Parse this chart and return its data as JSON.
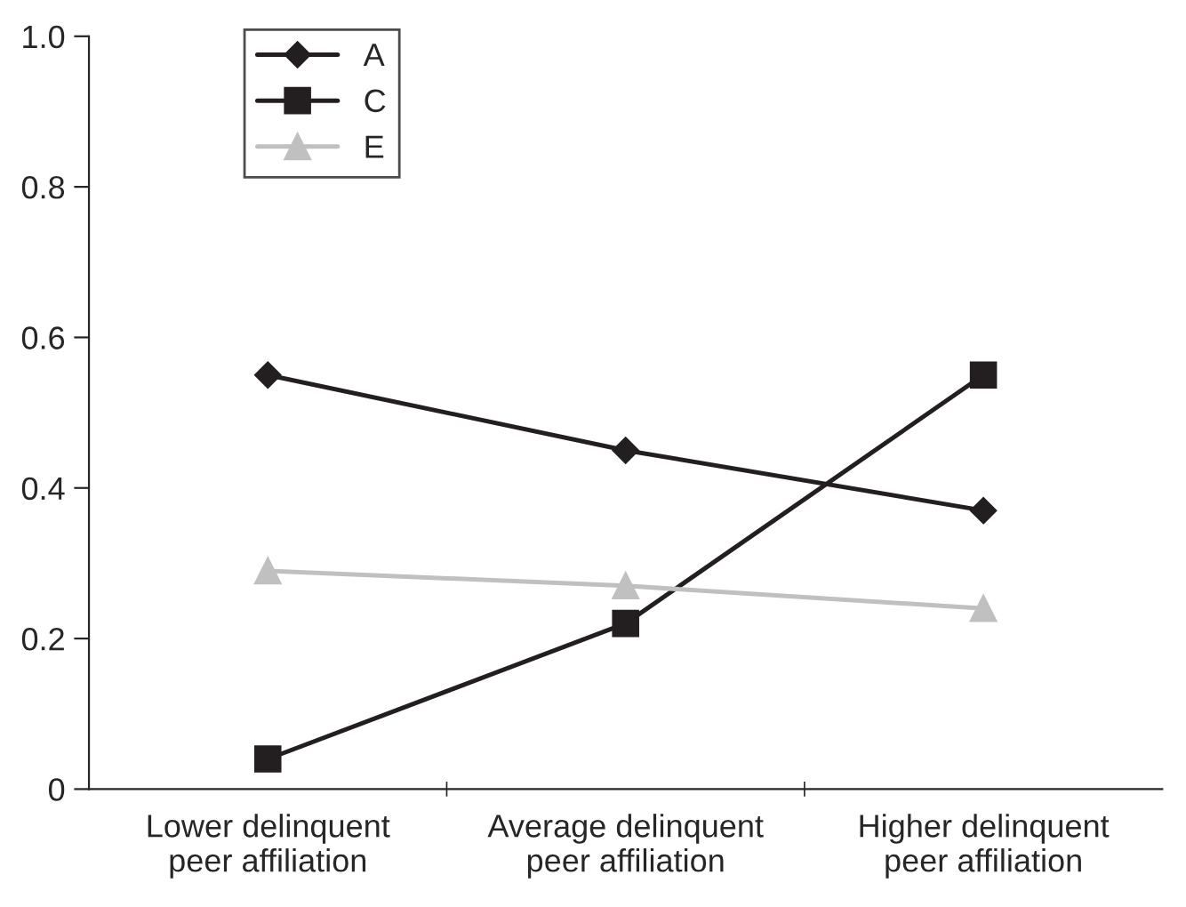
{
  "chart_data": {
    "type": "line",
    "categories": [
      "Lower delinquent\npeer affiliation",
      "Average delinquent\npeer affiliation",
      "Higher delinquent\npeer affiliation"
    ],
    "series": [
      {
        "name": "A",
        "color": "#231f20",
        "marker": "diamond",
        "values": [
          0.55,
          0.45,
          0.37
        ]
      },
      {
        "name": "C",
        "color": "#231f20",
        "marker": "square",
        "values": [
          0.04,
          0.22,
          0.55
        ]
      },
      {
        "name": "E",
        "color": "#c0c0c0",
        "marker": "triangle",
        "values": [
          0.29,
          0.27,
          0.24
        ]
      }
    ],
    "ylim": [
      0,
      1.0
    ],
    "yticks": [
      0,
      0.2,
      0.4,
      0.6,
      0.8,
      {
        "value": 1,
        "label": "1.0"
      }
    ],
    "grid": false,
    "legend": "top left",
    "line_style": "solid"
  }
}
